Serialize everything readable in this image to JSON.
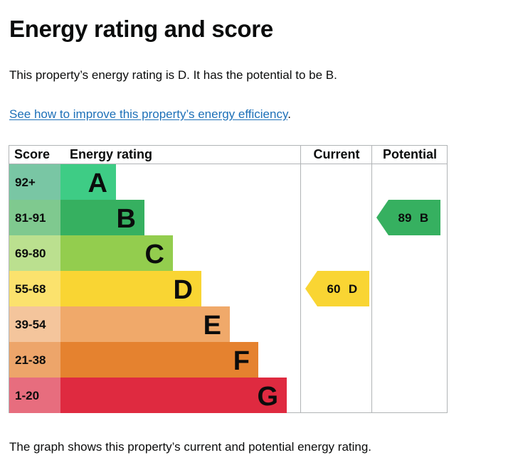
{
  "page": {
    "heading": "Energy rating and score",
    "summary": "This property’s energy rating is D. It has the potential to be B.",
    "improve_link": "See how to improve this property’s energy efficiency",
    "improve_suffix": ".",
    "caption": "The graph shows this property’s current and potential energy rating."
  },
  "chart_data": {
    "type": "bar",
    "columns": [
      "Score",
      "Energy rating",
      "Current",
      "Potential"
    ],
    "bands": [
      {
        "score": "92+",
        "letter": "A",
        "value": 1,
        "band_color": "#3ecc85",
        "score_color": "#79c6a4"
      },
      {
        "score": "81-91",
        "letter": "B",
        "value": 2,
        "band_color": "#36b060",
        "score_color": "#7fc98f"
      },
      {
        "score": "69-80",
        "letter": "C",
        "value": 3,
        "band_color": "#93cd4e",
        "score_color": "#bbe08f"
      },
      {
        "score": "55-68",
        "letter": "D",
        "value": 4,
        "band_color": "#f9d533",
        "score_color": "#fbe26d"
      },
      {
        "score": "39-54",
        "letter": "E",
        "value": 5,
        "band_color": "#f0a96a",
        "score_color": "#f4c59c"
      },
      {
        "score": "21-38",
        "letter": "F",
        "value": 6,
        "band_color": "#e5822f",
        "score_color": "#eda56a"
      },
      {
        "score": "1-20",
        "letter": "G",
        "value": 7,
        "band_color": "#df2a40",
        "score_color": "#e76d7e"
      }
    ],
    "current": {
      "score": "60",
      "letter": "D",
      "color": "#f9d533"
    },
    "potential": {
      "score": "89",
      "letter": "B",
      "color": "#36b060"
    }
  }
}
